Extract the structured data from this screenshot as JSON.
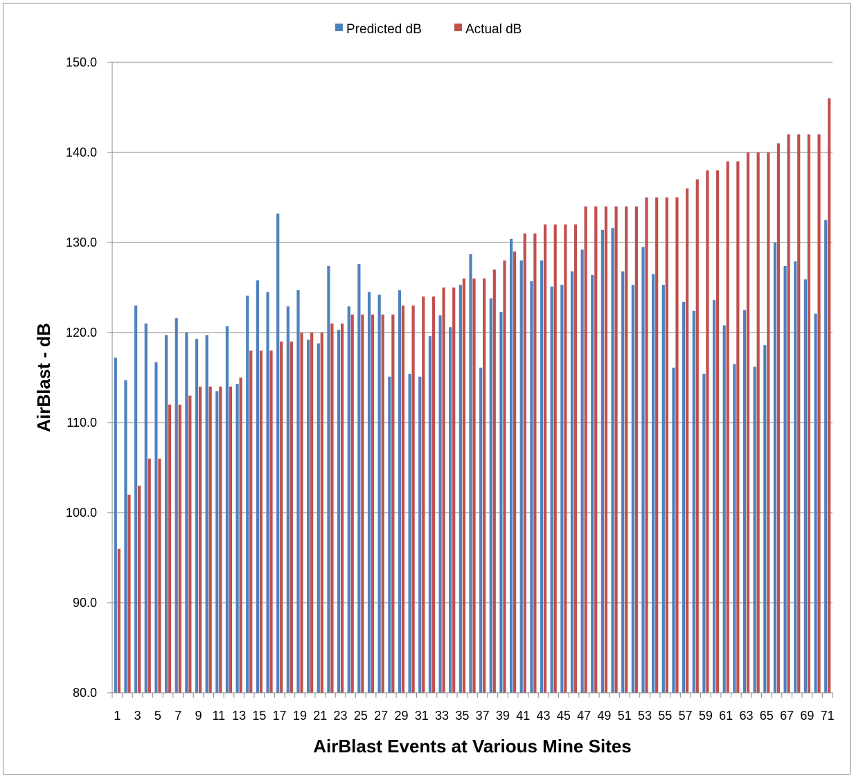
{
  "chart_data": {
    "type": "bar",
    "title": "",
    "xlabel": "AirBlast Events at Various Mine Sites",
    "ylabel": "AirBlast - dB",
    "ylim": [
      80,
      150
    ],
    "yticks": [
      "80.0",
      "90.0",
      "100.0",
      "110.0",
      "120.0",
      "130.0",
      "140.0",
      "150.0"
    ],
    "grid": true,
    "legend_position": "top",
    "colors": {
      "predicted": "#4F81BD",
      "actual": "#C0504D"
    },
    "categories": [
      1,
      2,
      3,
      4,
      5,
      6,
      7,
      8,
      9,
      10,
      11,
      12,
      13,
      14,
      15,
      16,
      17,
      18,
      19,
      20,
      21,
      22,
      23,
      24,
      25,
      26,
      27,
      28,
      29,
      30,
      31,
      32,
      33,
      34,
      35,
      36,
      37,
      38,
      39,
      40,
      41,
      42,
      43,
      44,
      45,
      46,
      47,
      48,
      49,
      50,
      51,
      52,
      53,
      54,
      55,
      56,
      57,
      58,
      59,
      60,
      61,
      62,
      63,
      64,
      65,
      66,
      67,
      68,
      69,
      70,
      71
    ],
    "xtick_labels": [
      "1",
      "3",
      "5",
      "7",
      "9",
      "11",
      "13",
      "15",
      "17",
      "19",
      "21",
      "23",
      "25",
      "27",
      "29",
      "31",
      "33",
      "35",
      "37",
      "39",
      "41",
      "43",
      "45",
      "47",
      "49",
      "51",
      "53",
      "55",
      "57",
      "59",
      "61",
      "63",
      "65",
      "67",
      "69",
      "71"
    ],
    "series": [
      {
        "name": "Predicted dB",
        "values": [
          117.2,
          114.7,
          123.0,
          121.0,
          116.7,
          119.7,
          121.6,
          120.0,
          119.3,
          119.7,
          113.5,
          120.7,
          114.3,
          124.1,
          125.8,
          124.5,
          133.2,
          122.9,
          124.7,
          119.2,
          118.8,
          127.4,
          120.3,
          122.9,
          127.6,
          124.5,
          124.2,
          115.1,
          124.7,
          115.4,
          115.1,
          119.6,
          121.9,
          120.6,
          125.3,
          128.7,
          116.1,
          123.8,
          122.3,
          130.4,
          128.0,
          125.7,
          128.0,
          125.1,
          125.3,
          126.8,
          129.2,
          126.4,
          131.4,
          131.6,
          126.8,
          125.3,
          129.5,
          126.5,
          125.3,
          116.1,
          123.4,
          122.4,
          115.4,
          123.6,
          120.8,
          116.5,
          122.5,
          116.2,
          118.6,
          130.0,
          127.4,
          127.9,
          125.9,
          122.1,
          132.5
        ]
      },
      {
        "name": "Actual dB",
        "values": [
          96,
          102,
          103,
          106,
          106,
          112,
          112,
          113,
          114,
          114,
          114,
          114,
          115,
          118,
          118,
          118,
          119,
          119,
          120,
          120,
          120,
          121,
          121,
          122,
          122,
          122,
          122,
          122,
          123,
          123,
          124,
          124,
          125,
          125,
          126,
          126,
          126,
          127,
          128,
          129,
          131,
          131,
          132,
          132,
          132,
          132,
          134,
          134,
          134,
          134,
          134,
          134,
          135,
          135,
          135,
          135,
          136,
          137,
          138,
          138,
          139,
          139,
          140,
          140,
          140,
          141,
          142,
          142,
          142,
          142,
          146
        ]
      }
    ]
  }
}
